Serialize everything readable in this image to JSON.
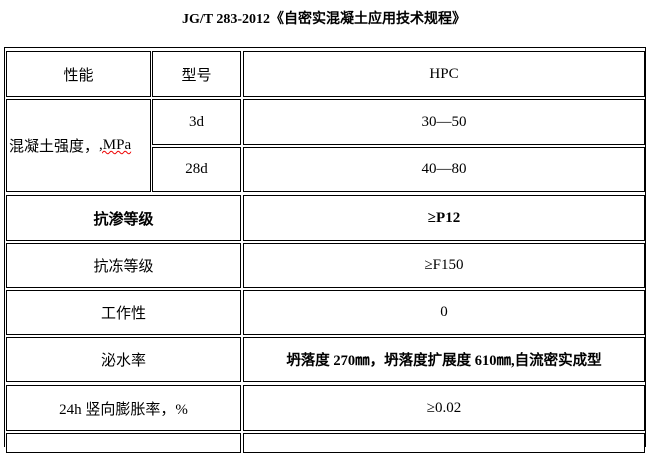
{
  "title": "JG/T 283-2012《自密实混凝土应用技术规程》",
  "header": {
    "property": "性能",
    "model": "型号",
    "value": "HPC"
  },
  "strength": {
    "label_prefix": "混凝土强度，",
    "label_unit": ",MPa",
    "rows": [
      {
        "age": "3d",
        "value": "30—50"
      },
      {
        "age": "28d",
        "value": "40—80"
      }
    ]
  },
  "rows": [
    {
      "label": "抗渗等级",
      "value": "≥P12",
      "bold": true
    },
    {
      "label": "抗冻等级",
      "value": "≥F150"
    },
    {
      "label": "工作性",
      "value": "0"
    },
    {
      "label": "泌水率",
      "value": "坍落度 270㎜，坍落度扩展度 610㎜,自流密实成型"
    },
    {
      "label": "24h 竖向膨胀率，%",
      "value": "≥0.02"
    }
  ]
}
